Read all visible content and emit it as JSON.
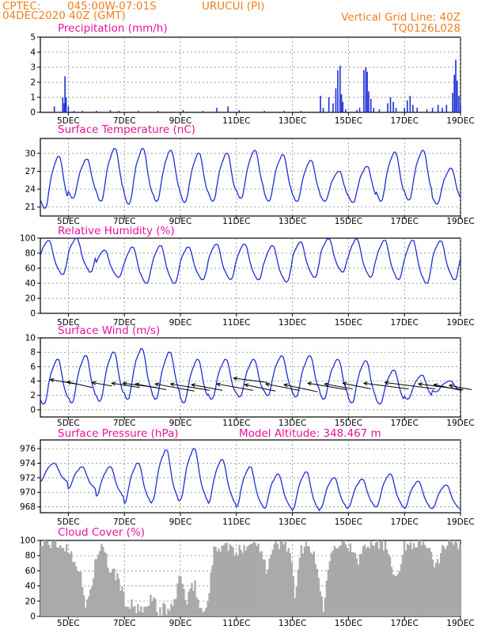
{
  "header": {
    "source": "CPTEC:",
    "coords": "045:00W-07:01S",
    "location": "URUCUI (PI)",
    "init_time": "04DEC2020 40Z (GMT)",
    "grid_note": "Vertical Grid Line: 40Z",
    "model": "TQ0126L028"
  },
  "colors": {
    "header": "#f07f1e",
    "title": "#e8119b",
    "line": "#1f2fd6",
    "cloud": "#a9a9a9"
  },
  "x_labels": [
    "5DEC",
    "7DEC",
    "9DEC",
    "11DEC",
    "13DEC",
    "15DEC",
    "17DEC",
    "19DEC"
  ],
  "chart_data": [
    {
      "id": "precip",
      "type": "bar",
      "title": "Precipitation (mm/h)",
      "ylim": [
        0,
        5
      ],
      "yticks": [
        "0",
        "1",
        "2",
        "3",
        "4",
        "5"
      ],
      "x_range_days": [
        4.0,
        19.0
      ],
      "spikes": [
        [
          4.5,
          0.4
        ],
        [
          4.8,
          1.0
        ],
        [
          4.85,
          0.6
        ],
        [
          4.88,
          2.4
        ],
        [
          4.92,
          1.0
        ],
        [
          5.0,
          0.4
        ],
        [
          5.2,
          0.1
        ],
        [
          5.5,
          0.1
        ],
        [
          6.0,
          0.1
        ],
        [
          6.5,
          0.15
        ],
        [
          6.8,
          0.1
        ],
        [
          7.5,
          0.1
        ],
        [
          8.2,
          0.1
        ],
        [
          9.1,
          0.15
        ],
        [
          9.8,
          0.1
        ],
        [
          10.3,
          0.3
        ],
        [
          10.7,
          0.4
        ],
        [
          11.1,
          0.15
        ],
        [
          12.0,
          0.1
        ],
        [
          12.7,
          0.1
        ],
        [
          13.3,
          0.1
        ],
        [
          14.0,
          1.1
        ],
        [
          14.1,
          0.3
        ],
        [
          14.3,
          1.0
        ],
        [
          14.45,
          0.6
        ],
        [
          14.55,
          1.6
        ],
        [
          14.62,
          2.8
        ],
        [
          14.7,
          3.1
        ],
        [
          14.75,
          1.2
        ],
        [
          14.8,
          0.7
        ],
        [
          14.9,
          0.2
        ],
        [
          15.3,
          0.15
        ],
        [
          15.4,
          0.3
        ],
        [
          15.55,
          2.8
        ],
        [
          15.62,
          3.0
        ],
        [
          15.67,
          2.7
        ],
        [
          15.72,
          1.4
        ],
        [
          15.8,
          0.9
        ],
        [
          15.9,
          0.3
        ],
        [
          16.1,
          0.2
        ],
        [
          16.4,
          0.6
        ],
        [
          16.5,
          1.0
        ],
        [
          16.6,
          0.7
        ],
        [
          16.7,
          0.3
        ],
        [
          17.0,
          0.3
        ],
        [
          17.1,
          0.8
        ],
        [
          17.2,
          1.1
        ],
        [
          17.3,
          0.5
        ],
        [
          17.45,
          0.3
        ],
        [
          17.8,
          0.2
        ],
        [
          18.0,
          0.3
        ],
        [
          18.2,
          0.5
        ],
        [
          18.35,
          0.3
        ],
        [
          18.5,
          0.5
        ],
        [
          18.72,
          1.3
        ],
        [
          18.78,
          2.5
        ],
        [
          18.83,
          3.5
        ],
        [
          18.88,
          2.1
        ],
        [
          18.94,
          1.1
        ],
        [
          19.0,
          0.5
        ]
      ]
    },
    {
      "id": "temp",
      "type": "line",
      "title": "Surface Temperature (nC)",
      "ylim": [
        19.5,
        32.5
      ],
      "yticks": [
        {
          "v": 21,
          "t": "21"
        },
        {
          "v": 24,
          "t": "24"
        },
        {
          "v": 27,
          "t": "27"
        },
        {
          "v": 30,
          "t": "30"
        }
      ],
      "daily": [
        {
          "min": 20.8,
          "max": 29.5
        },
        {
          "min": 22.5,
          "max": 29.0
        },
        {
          "min": 22.0,
          "max": 30.8
        },
        {
          "min": 21.5,
          "max": 30.8
        },
        {
          "min": 22.0,
          "max": 30.5
        },
        {
          "min": 21.8,
          "max": 30.0
        },
        {
          "min": 22.0,
          "max": 30.0
        },
        {
          "min": 22.5,
          "max": 30.5
        },
        {
          "min": 22.0,
          "max": 29.8
        },
        {
          "min": 22.0,
          "max": 28.8
        },
        {
          "min": 22.0,
          "max": 27.0
        },
        {
          "min": 21.8,
          "max": 27.8
        },
        {
          "min": 22.0,
          "max": 30.2
        },
        {
          "min": 22.2,
          "max": 30.5
        },
        {
          "min": 21.5,
          "max": 27.5
        }
      ]
    },
    {
      "id": "rh",
      "type": "line",
      "title": "Relative Humidity (%)",
      "ylim": [
        0,
        100
      ],
      "yticks": [
        {
          "v": 0,
          "t": "0"
        },
        {
          "v": 20,
          "t": "20"
        },
        {
          "v": 40,
          "t": "40"
        },
        {
          "v": 60,
          "t": "60"
        },
        {
          "v": 80,
          "t": "80"
        },
        {
          "v": 100,
          "t": "100"
        }
      ],
      "daily": [
        {
          "min": 52,
          "max": 97
        },
        {
          "min": 55,
          "max": 100
        },
        {
          "min": 48,
          "max": 84
        },
        {
          "min": 40,
          "max": 88
        },
        {
          "min": 40,
          "max": 90
        },
        {
          "min": 45,
          "max": 88
        },
        {
          "min": 45,
          "max": 92
        },
        {
          "min": 45,
          "max": 92
        },
        {
          "min": 42,
          "max": 90
        },
        {
          "min": 48,
          "max": 95
        },
        {
          "min": 55,
          "max": 99
        },
        {
          "min": 48,
          "max": 99
        },
        {
          "min": 45,
          "max": 97
        },
        {
          "min": 40,
          "max": 97
        },
        {
          "min": 45,
          "max": 96
        }
      ]
    },
    {
      "id": "wind",
      "type": "line",
      "title": "Surface Wind (m/s)",
      "ylim": [
        -1,
        10
      ],
      "yticks": [
        {
          "v": 0,
          "t": "0"
        },
        {
          "v": 2,
          "t": "2"
        },
        {
          "v": 4,
          "t": "4"
        },
        {
          "v": 6,
          "t": "6"
        },
        {
          "v": 8,
          "t": "8"
        },
        {
          "v": 10,
          "t": "10"
        }
      ],
      "daily": [
        {
          "min": 0.8,
          "max": 7.0
        },
        {
          "min": 1.0,
          "max": 7.5
        },
        {
          "min": 1.2,
          "max": 8.0
        },
        {
          "min": 1.5,
          "max": 8.5
        },
        {
          "min": 1.5,
          "max": 8.0
        },
        {
          "min": 1.0,
          "max": 7.0
        },
        {
          "min": 1.5,
          "max": 7.0
        },
        {
          "min": 1.8,
          "max": 7.0
        },
        {
          "min": 2.0,
          "max": 7.5
        },
        {
          "min": 1.8,
          "max": 7.5
        },
        {
          "min": 1.5,
          "max": 7.0
        },
        {
          "min": 1.0,
          "max": 6.8
        },
        {
          "min": 0.8,
          "max": 5.5
        },
        {
          "min": 1.5,
          "max": 4.8
        },
        {
          "min": 2.5,
          "max": 4.0
        }
      ],
      "arrows": [
        [
          4.35,
          4.2,
          0.9,
          -0.6
        ],
        [
          4.95,
          3.9,
          0.9,
          -0.8
        ],
        [
          5.85,
          3.8,
          0.7,
          -0.5
        ],
        [
          6.55,
          3.7,
          1.0,
          -0.6
        ],
        [
          6.95,
          3.7,
          1.2,
          -0.6
        ],
        [
          7.4,
          3.6,
          1.1,
          -0.8
        ],
        [
          8.1,
          3.6,
          1.4,
          -1.0
        ],
        [
          8.65,
          3.6,
          1.4,
          -0.9
        ],
        [
          9.4,
          3.5,
          1.1,
          -0.8
        ],
        [
          10.3,
          3.6,
          1.3,
          -0.9
        ],
        [
          10.9,
          4.4,
          1.2,
          -0.6
        ],
        [
          11.3,
          3.5,
          1.1,
          -0.9
        ],
        [
          12.05,
          3.6,
          1.2,
          -0.9
        ],
        [
          12.7,
          3.5,
          1.2,
          -1.0
        ],
        [
          13.55,
          3.7,
          1.4,
          -0.9
        ],
        [
          14.15,
          3.6,
          1.0,
          -0.7
        ],
        [
          14.8,
          3.7,
          1.0,
          -0.8
        ],
        [
          15.55,
          3.7,
          1.6,
          -0.8
        ],
        [
          16.3,
          3.8,
          1.8,
          -0.9
        ],
        [
          17.5,
          3.6,
          1.6,
          -0.8
        ],
        [
          18.05,
          3.5,
          1.0,
          -0.8
        ],
        [
          18.6,
          3.4,
          0.8,
          -0.6
        ]
      ]
    },
    {
      "id": "pres",
      "type": "line",
      "title": "Surface Pressure (hPa)",
      "extra_label": "Model Altitude: 348.467 m",
      "ylim": [
        967.2,
        977.2
      ],
      "yticks": [
        {
          "v": 968,
          "t": "968"
        },
        {
          "v": 970,
          "t": "970"
        },
        {
          "v": 972,
          "t": "972"
        },
        {
          "v": 974,
          "t": "974"
        },
        {
          "v": 976,
          "t": "976"
        }
      ],
      "daily": [
        {
          "min": 971.5,
          "max": 974.0
        },
        {
          "min": 970.5,
          "max": 973.5
        },
        {
          "min": 969.5,
          "max": 973.5
        },
        {
          "min": 968.5,
          "max": 974.0
        },
        {
          "min": 968.8,
          "max": 975.8
        },
        {
          "min": 969.0,
          "max": 976.0
        },
        {
          "min": 968.5,
          "max": 974.5
        },
        {
          "min": 968.0,
          "max": 973.5
        },
        {
          "min": 967.8,
          "max": 972.5
        },
        {
          "min": 967.5,
          "max": 972.8
        },
        {
          "min": 967.8,
          "max": 972.0
        },
        {
          "min": 968.0,
          "max": 971.8
        },
        {
          "min": 968.0,
          "max": 972.5
        },
        {
          "min": 967.8,
          "max": 971.5
        },
        {
          "min": 967.8,
          "max": 971.0
        }
      ]
    },
    {
      "id": "cloud",
      "type": "area",
      "title": "Cloud Cover (%)",
      "ylim": [
        0,
        100
      ],
      "yticks": [
        {
          "v": 0,
          "t": "0"
        },
        {
          "v": 20,
          "t": "20"
        },
        {
          "v": 40,
          "t": "40"
        },
        {
          "v": 60,
          "t": "60"
        },
        {
          "v": 80,
          "t": "80"
        },
        {
          "v": 100,
          "t": "100"
        }
      ],
      "profile": [
        [
          4.0,
          95
        ],
        [
          4.4,
          97
        ],
        [
          4.8,
          92
        ],
        [
          5.1,
          85
        ],
        [
          5.4,
          60
        ],
        [
          5.6,
          15
        ],
        [
          5.8,
          35
        ],
        [
          6.0,
          80
        ],
        [
          6.2,
          90
        ],
        [
          6.5,
          60
        ],
        [
          6.8,
          50
        ],
        [
          7.0,
          20
        ],
        [
          7.2,
          15
        ],
        [
          7.4,
          10
        ],
        [
          7.6,
          5
        ],
        [
          7.8,
          10
        ],
        [
          8.0,
          30
        ],
        [
          8.2,
          5
        ],
        [
          8.4,
          10
        ],
        [
          8.7,
          8
        ],
        [
          8.9,
          40
        ],
        [
          9.0,
          60
        ],
        [
          9.2,
          15
        ],
        [
          9.5,
          45
        ],
        [
          9.7,
          10
        ],
        [
          9.9,
          5
        ],
        [
          10.2,
          85
        ],
        [
          10.5,
          95
        ],
        [
          10.8,
          90
        ],
        [
          11.0,
          80
        ],
        [
          11.3,
          95
        ],
        [
          11.6,
          98
        ],
        [
          11.9,
          90
        ],
        [
          12.1,
          60
        ],
        [
          12.3,
          90
        ],
        [
          12.6,
          97
        ],
        [
          12.9,
          92
        ],
        [
          13.1,
          20
        ],
        [
          13.3,
          90
        ],
        [
          13.6,
          97
        ],
        [
          13.9,
          60
        ],
        [
          14.1,
          10
        ],
        [
          14.4,
          95
        ],
        [
          14.7,
          99
        ],
        [
          15.0,
          95
        ],
        [
          15.3,
          70
        ],
        [
          15.6,
          97
        ],
        [
          16.0,
          99
        ],
        [
          16.4,
          90
        ],
        [
          16.7,
          50
        ],
        [
          17.0,
          92
        ],
        [
          17.4,
          99
        ],
        [
          17.8,
          95
        ],
        [
          18.1,
          60
        ],
        [
          18.4,
          96
        ],
        [
          18.7,
          99
        ],
        [
          19.0,
          97
        ]
      ]
    }
  ]
}
